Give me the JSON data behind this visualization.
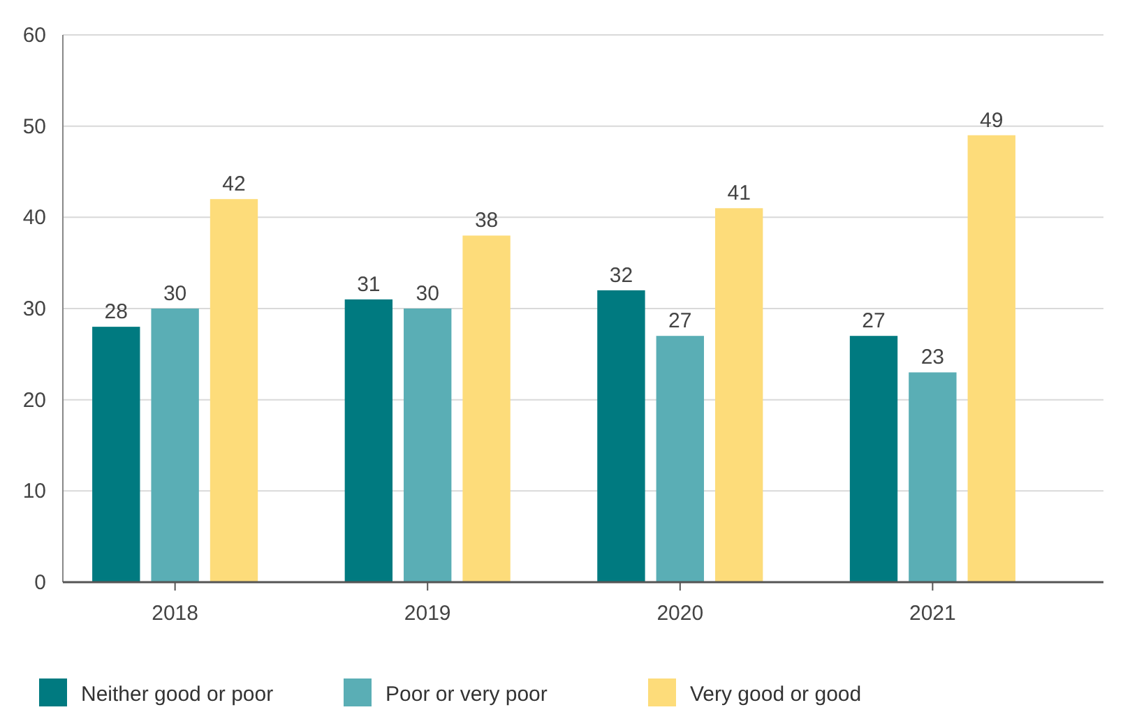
{
  "chart_data": {
    "type": "bar",
    "categories": [
      "2018",
      "2019",
      "2020",
      "2021"
    ],
    "series": [
      {
        "name": "Neither good or poor",
        "color": "#007a80",
        "values": [
          28,
          31,
          32,
          27
        ]
      },
      {
        "name": "Poor or very poor",
        "color": "#5aaeb5",
        "values": [
          30,
          30,
          27,
          23
        ]
      },
      {
        "name": "Very good or good",
        "color": "#fddc7a",
        "values": [
          42,
          38,
          41,
          49
        ]
      }
    ],
    "ylim": [
      0,
      60
    ],
    "yticks": [
      0,
      10,
      20,
      30,
      40,
      50,
      60
    ],
    "grid": "y",
    "legend": "bottom",
    "data_labels": true
  }
}
